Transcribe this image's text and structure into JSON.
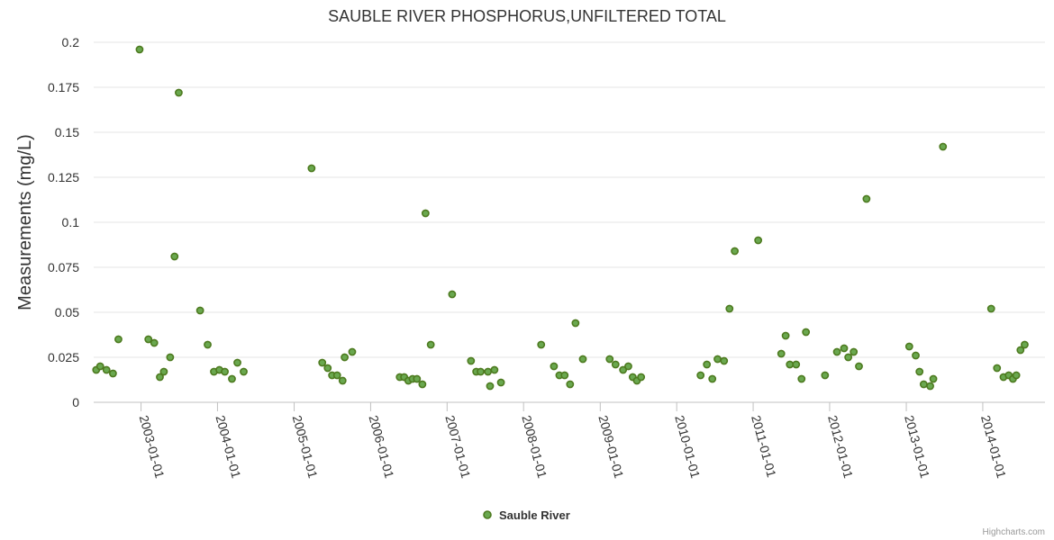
{
  "chart_data": {
    "type": "scatter",
    "title": "SAUBLE RIVER PHOSPHORUS,UNFILTERED TOTAL",
    "ylabel": "Measurements (mg/L)",
    "xlabel": "",
    "ylim": [
      0,
      0.2
    ],
    "xlim": [
      "2002-05-20",
      "2014-10-25"
    ],
    "yticks": [
      0,
      0.025,
      0.05,
      0.075,
      0.1,
      0.125,
      0.15,
      0.175,
      0.2
    ],
    "ytick_labels": [
      "0",
      "0.025",
      "0.05",
      "0.075",
      "0.1",
      "0.125",
      "0.15",
      "0.175",
      "0.2"
    ],
    "xticks": [
      "2003-01-01",
      "2004-01-01",
      "2005-01-01",
      "2006-01-01",
      "2007-01-01",
      "2008-01-01",
      "2009-01-01",
      "2010-01-01",
      "2011-01-01",
      "2012-01-01",
      "2013-01-01",
      "2014-01-01"
    ],
    "grid": true,
    "legend_position": "bottom-center",
    "series": [
      {
        "name": "Sauble River",
        "color": "#6aa84f",
        "stroke": "#4d7a1f",
        "points": [
          [
            "2002-06-01",
            0.018
          ],
          [
            "2002-06-20",
            0.02
          ],
          [
            "2002-07-20",
            0.018
          ],
          [
            "2002-08-20",
            0.016
          ],
          [
            "2002-09-15",
            0.035
          ],
          [
            "2002-12-25",
            0.196
          ],
          [
            "2003-02-05",
            0.035
          ],
          [
            "2003-03-05",
            0.033
          ],
          [
            "2003-04-01",
            0.014
          ],
          [
            "2003-04-20",
            0.017
          ],
          [
            "2003-05-20",
            0.025
          ],
          [
            "2003-06-10",
            0.081
          ],
          [
            "2003-06-30",
            0.172
          ],
          [
            "2003-10-10",
            0.051
          ],
          [
            "2003-11-15",
            0.032
          ],
          [
            "2003-12-15",
            0.017
          ],
          [
            "2004-01-10",
            0.018
          ],
          [
            "2004-02-05",
            0.017
          ],
          [
            "2004-03-10",
            0.013
          ],
          [
            "2004-04-05",
            0.022
          ],
          [
            "2004-05-05",
            0.017
          ],
          [
            "2005-03-25",
            0.13
          ],
          [
            "2005-05-15",
            0.022
          ],
          [
            "2005-06-10",
            0.019
          ],
          [
            "2005-07-01",
            0.015
          ],
          [
            "2005-07-25",
            0.015
          ],
          [
            "2005-08-20",
            0.012
          ],
          [
            "2005-08-30",
            0.025
          ],
          [
            "2005-10-05",
            0.028
          ],
          [
            "2006-05-20",
            0.014
          ],
          [
            "2006-06-10",
            0.014
          ],
          [
            "2006-06-30",
            0.012
          ],
          [
            "2006-07-20",
            0.013
          ],
          [
            "2006-08-10",
            0.013
          ],
          [
            "2006-09-05",
            0.01
          ],
          [
            "2006-09-20",
            0.105
          ],
          [
            "2006-10-15",
            0.032
          ],
          [
            "2007-01-25",
            0.06
          ],
          [
            "2007-04-25",
            0.023
          ],
          [
            "2007-05-20",
            0.017
          ],
          [
            "2007-06-10",
            0.017
          ],
          [
            "2007-07-15",
            0.017
          ],
          [
            "2007-07-25",
            0.009
          ],
          [
            "2007-08-15",
            0.018
          ],
          [
            "2007-09-15",
            0.011
          ],
          [
            "2008-03-25",
            0.032
          ],
          [
            "2008-05-25",
            0.02
          ],
          [
            "2008-06-20",
            0.015
          ],
          [
            "2008-07-15",
            0.015
          ],
          [
            "2008-08-10",
            0.01
          ],
          [
            "2008-09-05",
            0.044
          ],
          [
            "2008-10-10",
            0.024
          ],
          [
            "2009-02-15",
            0.024
          ],
          [
            "2009-03-15",
            0.021
          ],
          [
            "2009-04-20",
            0.018
          ],
          [
            "2009-05-15",
            0.02
          ],
          [
            "2009-06-05",
            0.014
          ],
          [
            "2009-06-25",
            0.012
          ],
          [
            "2009-07-15",
            0.014
          ],
          [
            "2010-04-25",
            0.015
          ],
          [
            "2010-05-25",
            0.021
          ],
          [
            "2010-06-20",
            0.013
          ],
          [
            "2010-07-15",
            0.024
          ],
          [
            "2010-08-15",
            0.023
          ],
          [
            "2010-09-10",
            0.052
          ],
          [
            "2010-10-05",
            0.084
          ],
          [
            "2011-01-25",
            0.09
          ],
          [
            "2011-05-15",
            0.027
          ],
          [
            "2011-06-05",
            0.037
          ],
          [
            "2011-06-25",
            0.021
          ],
          [
            "2011-07-25",
            0.021
          ],
          [
            "2011-08-20",
            0.013
          ],
          [
            "2011-09-10",
            0.039
          ],
          [
            "2011-12-10",
            0.015
          ],
          [
            "2012-02-05",
            0.028
          ],
          [
            "2012-03-10",
            0.03
          ],
          [
            "2012-03-30",
            0.025
          ],
          [
            "2012-04-25",
            0.028
          ],
          [
            "2012-05-20",
            0.02
          ],
          [
            "2012-06-25",
            0.113
          ],
          [
            "2013-01-15",
            0.031
          ],
          [
            "2013-02-15",
            0.026
          ],
          [
            "2013-03-05",
            0.017
          ],
          [
            "2013-03-25",
            0.01
          ],
          [
            "2013-04-25",
            0.009
          ],
          [
            "2013-05-10",
            0.013
          ],
          [
            "2013-06-25",
            0.142
          ],
          [
            "2014-02-10",
            0.052
          ],
          [
            "2014-03-10",
            0.019
          ],
          [
            "2014-04-10",
            0.014
          ],
          [
            "2014-05-05",
            0.015
          ],
          [
            "2014-05-25",
            0.013
          ],
          [
            "2014-06-10",
            0.015
          ],
          [
            "2014-06-30",
            0.029
          ],
          [
            "2014-07-20",
            0.032
          ]
        ]
      }
    ]
  },
  "credits": "Highcharts.com"
}
